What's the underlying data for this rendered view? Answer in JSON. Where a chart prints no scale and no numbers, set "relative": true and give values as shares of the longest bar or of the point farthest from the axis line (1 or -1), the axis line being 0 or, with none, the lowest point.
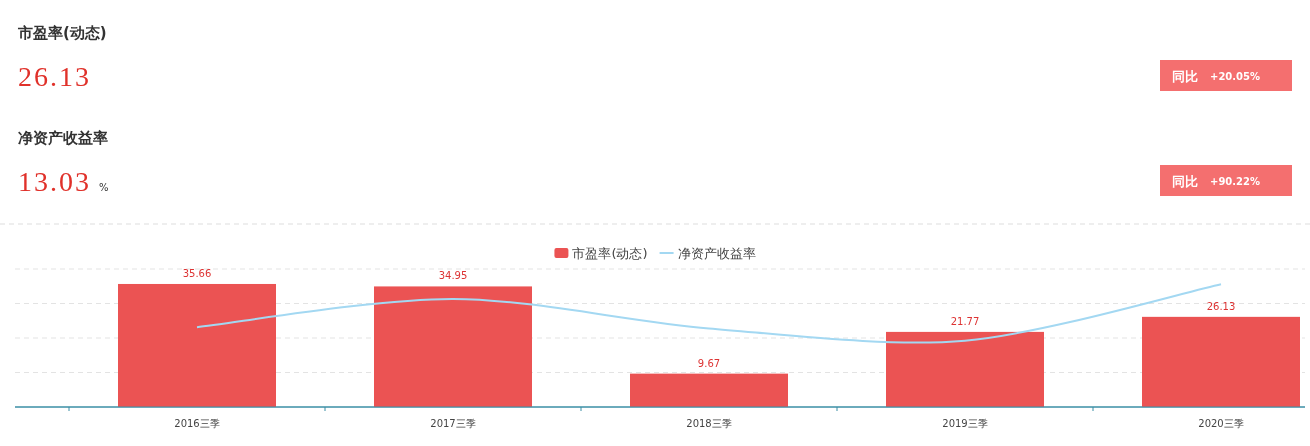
{
  "chart_data": [
    {
      "type": "other",
      "annotations": [
        "市盈率(动态)",
        "26.13",
        "同比",
        "+20.05%"
      ]
    },
    {
      "type": "other",
      "annotations": [
        "净资产收益率",
        "13.03",
        "%",
        "同比",
        "+90.22%"
      ]
    },
    {
      "type": "bar",
      "categories": [
        "2016三季",
        "2017三季",
        "2018三季",
        "2019三季",
        "2020三季"
      ],
      "series": [
        {
          "name": "市盈率(动态)",
          "type": "bar",
          "color": "#eb5353",
          "values": [
            35.66,
            34.95,
            9.67,
            21.77,
            26.13
          ]
        }
      ],
      "data_labels": true,
      "ylim": [
        0,
        40
      ],
      "yticks": [
        {
          "value": 0,
          "label": null
        },
        {
          "value": 10,
          "label": null
        },
        {
          "value": 20,
          "label": null
        },
        {
          "value": 30,
          "label": null
        },
        {
          "value": 40,
          "label": null
        }
      ],
      "grid": "y",
      "legend": "top",
      "tick_labels": "x"
    },
    {
      "type": "line",
      "categories": [
        null,
        null,
        null,
        null,
        null
      ],
      "relative": true,
      "series": [
        {
          "name": "净资产收益率",
          "color": "#a3d8f2",
          "values": [
            0.65,
            0.88,
            0.64,
            0.54,
            1.0
          ]
        }
      ],
      "legend": "top",
      "marker": "none"
    }
  ]
}
